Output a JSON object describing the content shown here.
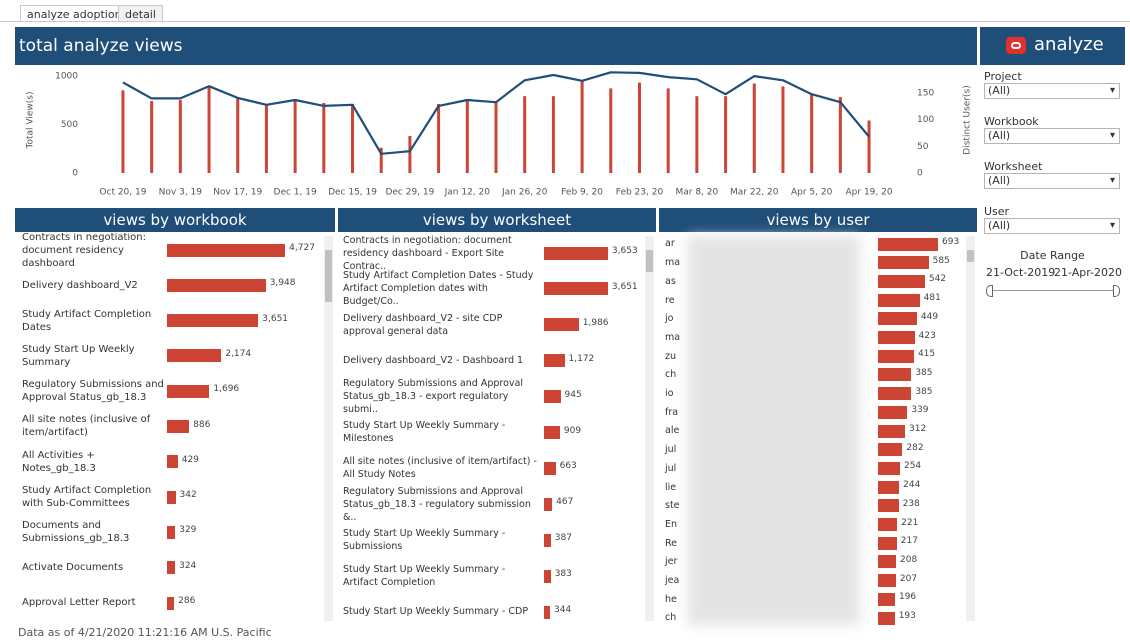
{
  "tabs": [
    "analyze adoption",
    "detail"
  ],
  "brand": "analyze",
  "footer": "Data as of 4/21/2020 11:21:16 AM U.S. Pacific",
  "timeline": {
    "type": "combo",
    "title": "total analyze views",
    "categories": [
      "Oct 20, 19",
      null,
      "Nov 3, 19",
      null,
      "Nov 17, 19",
      null,
      "Dec 1, 19",
      null,
      "Dec 15, 19",
      null,
      "Dec 29, 19",
      null,
      "Jan 12, 20",
      null,
      "Jan 26, 20",
      null,
      "Feb 9, 20",
      null,
      "Feb 23, 20",
      null,
      "Mar 8, 20",
      null,
      "Mar 22, 20",
      null,
      "Apr 5, 20",
      null,
      "Apr 19, 20"
    ],
    "series": [
      {
        "name": "Total View(s)",
        "color": "#cc4433",
        "values": [
          850,
          740,
          750,
          880,
          770,
          710,
          760,
          720,
          710,
          260,
          380,
          710,
          750,
          730,
          790,
          790,
          940,
          870,
          930,
          870,
          790,
          790,
          920,
          890,
          810,
          780,
          540
        ]
      },
      {
        "name": "Distinct User(s)",
        "color": "#1f4e79",
        "axis": "y2",
        "values": [
          170,
          140,
          140,
          163,
          141,
          128,
          137,
          126,
          128,
          36,
          41,
          126,
          137,
          133,
          174,
          184,
          173,
          189,
          188,
          180,
          176,
          148,
          182,
          174,
          148,
          133,
          68
        ]
      }
    ],
    "ylim": [
      0,
      1090
    ],
    "yticks": [
      0,
      500,
      1000
    ],
    "y2lim": [
      0,
      199
    ],
    "y2ticks": [
      0,
      50,
      100,
      150
    ]
  },
  "by_workbook": {
    "type": "bar",
    "title": "views by workbook",
    "color": "#cc4433",
    "categories": [
      "Contracts in negotiation: document residency dashboard",
      "Delivery dashboard_V2",
      "Study Artifact Completion Dates",
      "Study Start Up Weekly Summary",
      "Regulatory Submissions and Approval Status_gb_18.3",
      "All site notes (inclusive of item/artifact)",
      "All Activities + Notes_gb_18.3",
      "Study Artifact Completion with Sub-Committees",
      "Documents and Submissions_gb_18.3",
      "Activate Documents",
      "Approval Letter Report"
    ],
    "values": [
      4727,
      3948,
      3651,
      2174,
      1696,
      886,
      429,
      342,
      329,
      324,
      286
    ],
    "value_labels": [
      "4,727",
      "3,948",
      "3,651",
      "2,174",
      "1,696",
      "886",
      "429",
      "342",
      "329",
      "324",
      "286"
    ]
  },
  "by_worksheet": {
    "type": "bar",
    "title": "views by worksheet",
    "color": "#cc4433",
    "categories": [
      "Contracts in negotiation: document residency dashboard - Export Site Contrac..",
      "Study Artifact Completion Dates - Study Artifact Completion dates with Budget/Co..",
      "Delivery dashboard_V2 - site CDP approval general data",
      "Delivery dashboard_V2 - Dashboard 1",
      "Regulatory Submissions and Approval Status_gb_18.3 - export regulatory submi..",
      "Study Start Up Weekly Summary - Milestones",
      "All site notes (inclusive of item/artifact) - All Study Notes",
      "Regulatory Submissions and Approval Status_gb_18.3 - regulatory submission &..",
      "Study Start Up Weekly Summary - Submissions",
      "Study Start Up Weekly Summary - Artifact Completion",
      "Study Start Up Weekly Summary - CDP"
    ],
    "values": [
      3653,
      3651,
      1986,
      1172,
      945,
      909,
      663,
      467,
      387,
      383,
      344
    ],
    "value_labels": [
      "3,653",
      "3,651",
      "1,986",
      "1,172",
      "945",
      "909",
      "663",
      "467",
      "387",
      "383",
      "344"
    ]
  },
  "by_user": {
    "type": "bar",
    "title": "views by user",
    "color": "#cc4433",
    "categories": [
      "ar",
      "ma",
      "as",
      "re",
      "jo",
      "ma",
      "zu",
      "ch",
      "io",
      "fra",
      "ale",
      "jul",
      "jul",
      "lie",
      "ste",
      "En",
      "Re",
      "jer",
      "jea",
      "he",
      "ch"
    ],
    "values": [
      693,
      585,
      542,
      481,
      449,
      423,
      415,
      385,
      385,
      339,
      312,
      282,
      254,
      244,
      238,
      221,
      217,
      208,
      207,
      196,
      193
    ]
  },
  "filters": [
    {
      "label": "Project",
      "value": "(All)"
    },
    {
      "label": "Workbook",
      "value": "(All)"
    },
    {
      "label": "Worksheet",
      "value": "(All)"
    },
    {
      "label": "User",
      "value": "(All)"
    }
  ],
  "date_range": {
    "label": "Date Range",
    "start": "21-Oct-2019",
    "end": "21-Apr-2020"
  }
}
